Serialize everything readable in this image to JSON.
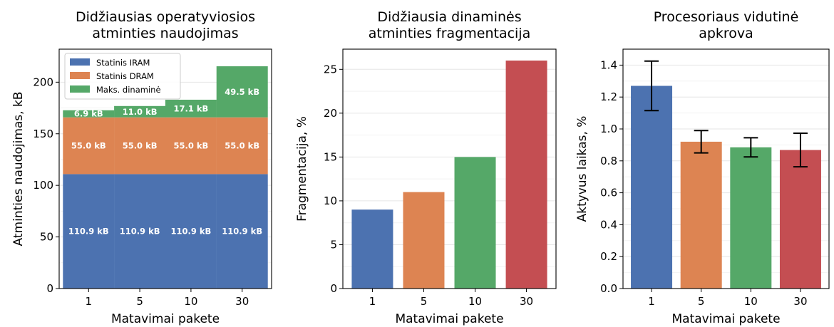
{
  "chart_data": [
    {
      "type": "bar",
      "stacked": true,
      "title": "Didžiausias operatyviosios\natminties naudojimas",
      "xlabel": "Matavimai pakete",
      "ylabel": "Atminties naudojimas, kB",
      "categories": [
        "1",
        "5",
        "10",
        "30"
      ],
      "ylim": [
        0,
        232
      ],
      "yticks": [
        0,
        50,
        100,
        150,
        200
      ],
      "grid": true,
      "legend_position": "top-left",
      "series": [
        {
          "name": "Statinis IRAM",
          "color": "#4c72b0",
          "values": [
            110.9,
            110.9,
            110.9,
            110.9
          ],
          "labels": [
            "110.9 kB",
            "110.9 kB",
            "110.9 kB",
            "110.9 kB"
          ]
        },
        {
          "name": "Statinis DRAM",
          "color": "#dd8452",
          "values": [
            55.0,
            55.0,
            55.0,
            55.0
          ],
          "labels": [
            "55.0 kB",
            "55.0 kB",
            "55.0 kB",
            "55.0 kB"
          ]
        },
        {
          "name": "Maks. dinaminė",
          "color": "#55a868",
          "values": [
            6.9,
            11.0,
            17.1,
            49.5
          ],
          "labels": [
            "6.9 kB",
            "11.0 kB",
            "17.1 kB",
            "49.5 kB"
          ]
        }
      ]
    },
    {
      "type": "bar",
      "title": "Didžiausia dinaminės\natminties fragmentacija",
      "xlabel": "Matavimai pakete",
      "ylabel": "Fragmentacija, %",
      "categories": [
        "1",
        "5",
        "10",
        "30"
      ],
      "values": [
        9,
        11,
        15,
        26
      ],
      "colors": [
        "#4c72b0",
        "#dd8452",
        "#55a868",
        "#c44e52"
      ],
      "ylim": [
        0,
        27.3
      ],
      "yticks": [
        0,
        5,
        10,
        15,
        20,
        25
      ],
      "grid": true
    },
    {
      "type": "bar",
      "title": "Procesoriaus vidutinė\napkrova",
      "xlabel": "Matavimai pakete",
      "ylabel": "Aktyvus laikas, %",
      "categories": [
        "1",
        "5",
        "10",
        "30"
      ],
      "values": [
        1.27,
        0.92,
        0.885,
        0.868
      ],
      "errors": [
        0.155,
        0.07,
        0.06,
        0.105
      ],
      "colors": [
        "#4c72b0",
        "#dd8452",
        "#55a868",
        "#c44e52"
      ],
      "ylim": [
        0,
        1.5
      ],
      "yticks": [
        "0.0",
        "0.2",
        "0.4",
        "0.6",
        "0.8",
        "1.0",
        "1.2",
        "1.4"
      ],
      "grid": true
    }
  ]
}
